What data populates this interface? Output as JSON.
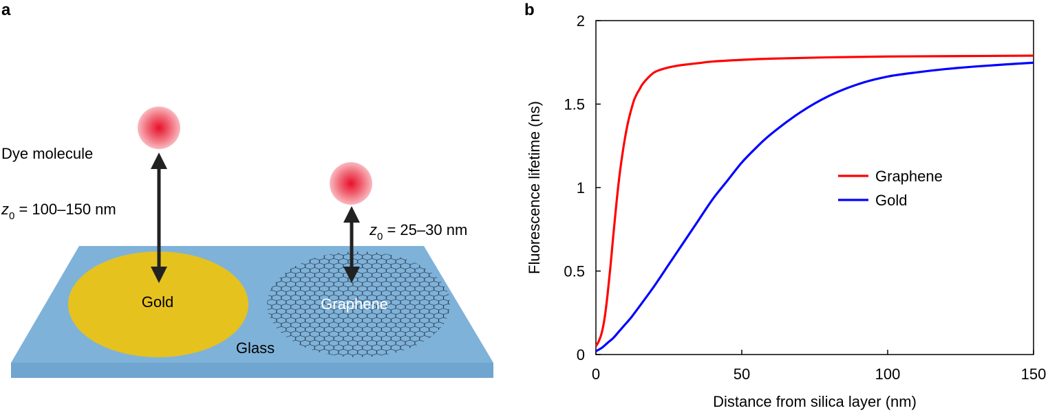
{
  "panel_a": {
    "label": "a",
    "dye_label": "Dye molecule",
    "gold_distance": {
      "symbol": "z",
      "subscript": "0",
      "text": " = 100–150 nm"
    },
    "graphene_distance": {
      "symbol": "z",
      "subscript": "0",
      "text": " = 25–30 nm"
    },
    "gold_label": "Gold",
    "graphene_label": "Graphene",
    "glass_label": "Glass",
    "colors": {
      "glass": "#7fb2d9",
      "gold": "#e6c21f",
      "dye": "#e8303f",
      "arrow": "#222222",
      "lattice": "#1a2a3a"
    }
  },
  "panel_b": {
    "label": "b"
  },
  "chart_data": {
    "type": "line",
    "title": "",
    "xlabel": "Distance from silica layer (nm)",
    "ylabel": "Fluorescence lifetime (ns)",
    "xlim": [
      0,
      150
    ],
    "ylim": [
      0,
      2
    ],
    "xticks": [
      0,
      50,
      100,
      150
    ],
    "yticks": [
      0,
      0.5,
      1,
      1.5,
      2
    ],
    "ytick_labels": [
      "0",
      "0.5",
      "1",
      "1.5",
      "2"
    ],
    "legend_position": "center-right",
    "series": [
      {
        "name": "Graphene",
        "color": "#ff0000",
        "x": [
          0,
          1,
          2,
          3,
          4,
          5,
          6,
          7,
          8,
          9,
          10,
          11,
          12,
          13,
          14,
          15,
          16,
          18,
          20,
          22,
          25,
          28,
          30,
          35,
          40,
          50,
          60,
          80,
          100,
          120,
          150
        ],
        "y": [
          0.05,
          0.08,
          0.13,
          0.22,
          0.36,
          0.53,
          0.72,
          0.9,
          1.06,
          1.19,
          1.3,
          1.39,
          1.46,
          1.52,
          1.56,
          1.59,
          1.62,
          1.66,
          1.69,
          1.705,
          1.72,
          1.73,
          1.735,
          1.745,
          1.755,
          1.765,
          1.772,
          1.78,
          1.785,
          1.787,
          1.79
        ]
      },
      {
        "name": "Gold",
        "color": "#0000ff",
        "x": [
          0,
          2,
          4,
          6,
          8,
          10,
          12,
          15,
          20,
          25,
          30,
          35,
          40,
          45,
          50,
          55,
          60,
          70,
          80,
          90,
          100,
          110,
          120,
          130,
          140,
          150
        ],
        "y": [
          0.02,
          0.04,
          0.07,
          0.1,
          0.14,
          0.18,
          0.22,
          0.29,
          0.41,
          0.54,
          0.67,
          0.8,
          0.93,
          1.04,
          1.15,
          1.24,
          1.32,
          1.45,
          1.55,
          1.62,
          1.665,
          1.69,
          1.71,
          1.725,
          1.737,
          1.748
        ]
      }
    ]
  }
}
